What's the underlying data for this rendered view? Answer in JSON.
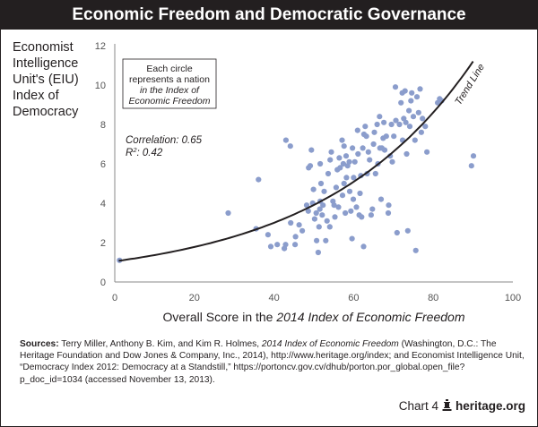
{
  "title": "Economic Freedom and Democratic Governance",
  "chart_data": {
    "type": "scatter",
    "ylabel": "Economist Intelligence Unit's (EIU) Index of Democracy",
    "xlabel_prefix": "Overall Score in the ",
    "xlabel_italic": "2014 Index of Economic Freedom",
    "xlim": [
      0,
      100
    ],
    "ylim": [
      0,
      12
    ],
    "x_ticks": [
      0,
      20,
      40,
      60,
      80,
      100
    ],
    "y_ticks": [
      0,
      2,
      4,
      6,
      8,
      10,
      12
    ],
    "grid": false,
    "point_color": "#8b9dcc",
    "trend_color": "#231f20",
    "trend_label": "Trend Line",
    "trend_line": {
      "type": "exponential",
      "a": 1.05,
      "b": 0.0263
    },
    "note_lines": [
      "Each circle",
      "represents a nation",
      "in the Index of",
      "Economic Freedom"
    ],
    "correlation_label": "Correlation: 0.65",
    "r2_label": "R2: 0.42",
    "points": [
      [
        1.2,
        1.1
      ],
      [
        28.5,
        3.5
      ],
      [
        36.1,
        5.2
      ],
      [
        35.5,
        2.7
      ],
      [
        38.5,
        2.4
      ],
      [
        39.2,
        1.8
      ],
      [
        40.8,
        1.9
      ],
      [
        43.0,
        7.2
      ],
      [
        44.1,
        6.9
      ],
      [
        42.6,
        1.7
      ],
      [
        42.9,
        1.9
      ],
      [
        45.3,
        1.9
      ],
      [
        45.4,
        2.3
      ],
      [
        46.3,
        2.9
      ],
      [
        47.1,
        2.6
      ],
      [
        44.2,
        3.0
      ],
      [
        48.2,
        3.9
      ],
      [
        48.6,
        3.6
      ],
      [
        48.7,
        5.8
      ],
      [
        49.1,
        5.9
      ],
      [
        49.4,
        6.7
      ],
      [
        49.7,
        4.0
      ],
      [
        49.9,
        4.7
      ],
      [
        50.2,
        3.2
      ],
      [
        50.6,
        3.5
      ],
      [
        50.7,
        2.1
      ],
      [
        51.1,
        1.5
      ],
      [
        51.3,
        2.8
      ],
      [
        51.5,
        3.7
      ],
      [
        51.6,
        4.1
      ],
      [
        51.6,
        6.0
      ],
      [
        51.8,
        5.0
      ],
      [
        52.1,
        3.4
      ],
      [
        52.3,
        3.9
      ],
      [
        52.6,
        4.6
      ],
      [
        53.0,
        2.1
      ],
      [
        53.3,
        3.1
      ],
      [
        53.6,
        5.5
      ],
      [
        54.0,
        2.8
      ],
      [
        54.1,
        6.2
      ],
      [
        54.4,
        6.6
      ],
      [
        54.8,
        4.1
      ],
      [
        55.1,
        3.9
      ],
      [
        55.3,
        3.3
      ],
      [
        55.6,
        4.8
      ],
      [
        55.9,
        5.7
      ],
      [
        56.2,
        3.8
      ],
      [
        56.4,
        6.3
      ],
      [
        56.6,
        5.8
      ],
      [
        57.1,
        7.2
      ],
      [
        57.2,
        4.4
      ],
      [
        57.4,
        6.0
      ],
      [
        57.6,
        5.0
      ],
      [
        57.6,
        6.9
      ],
      [
        57.9,
        3.5
      ],
      [
        58.1,
        6.4
      ],
      [
        58.2,
        5.3
      ],
      [
        58.5,
        5.9
      ],
      [
        58.9,
        6.1
      ],
      [
        59.0,
        4.6
      ],
      [
        59.3,
        3.6
      ],
      [
        59.6,
        2.2
      ],
      [
        59.7,
        6.8
      ],
      [
        59.9,
        4.2
      ],
      [
        60.0,
        5.3
      ],
      [
        60.3,
        6.1
      ],
      [
        60.7,
        3.8
      ],
      [
        61.0,
        7.7
      ],
      [
        61.1,
        6.5
      ],
      [
        61.4,
        3.4
      ],
      [
        61.6,
        4.5
      ],
      [
        61.8,
        5.4
      ],
      [
        62.0,
        3.3
      ],
      [
        62.3,
        6.8
      ],
      [
        62.5,
        1.8
      ],
      [
        62.6,
        7.5
      ],
      [
        62.9,
        7.9
      ],
      [
        63.2,
        7.4
      ],
      [
        63.4,
        5.5
      ],
      [
        63.7,
        6.6
      ],
      [
        64.0,
        6.2
      ],
      [
        64.4,
        3.4
      ],
      [
        64.7,
        3.7
      ],
      [
        65.0,
        7.0
      ],
      [
        65.2,
        7.6
      ],
      [
        65.5,
        5.5
      ],
      [
        65.9,
        8.0
      ],
      [
        66.1,
        6.0
      ],
      [
        66.5,
        8.4
      ],
      [
        66.6,
        6.8
      ],
      [
        66.9,
        4.2
      ],
      [
        67.1,
        6.8
      ],
      [
        67.4,
        7.3
      ],
      [
        67.6,
        8.1
      ],
      [
        67.8,
        6.7
      ],
      [
        68.2,
        7.4
      ],
      [
        68.7,
        3.5
      ],
      [
        68.8,
        3.9
      ],
      [
        69.2,
        6.4
      ],
      [
        69.5,
        8.0
      ],
      [
        69.7,
        6.1
      ],
      [
        70.1,
        7.4
      ],
      [
        70.5,
        9.9
      ],
      [
        70.6,
        8.2
      ],
      [
        70.9,
        2.5
      ],
      [
        71.5,
        8.0
      ],
      [
        71.9,
        9.1
      ],
      [
        72.2,
        9.6
      ],
      [
        72.3,
        7.2
      ],
      [
        72.6,
        8.3
      ],
      [
        72.9,
        9.7
      ],
      [
        73.1,
        8.1
      ],
      [
        73.3,
        6.5
      ],
      [
        73.6,
        2.6
      ],
      [
        73.9,
        8.7
      ],
      [
        74.1,
        7.9
      ],
      [
        74.4,
        9.2
      ],
      [
        74.6,
        9.6
      ],
      [
        75.0,
        8.4
      ],
      [
        75.4,
        7.2
      ],
      [
        75.6,
        1.6
      ],
      [
        75.9,
        9.4
      ],
      [
        76.3,
        8.6
      ],
      [
        76.7,
        9.8
      ],
      [
        77.0,
        7.6
      ],
      [
        77.3,
        8.3
      ],
      [
        78.0,
        7.9
      ],
      [
        78.4,
        6.6
      ],
      [
        81.1,
        9.1
      ],
      [
        81.6,
        9.3
      ],
      [
        82.1,
        9.2
      ],
      [
        89.6,
        5.9
      ],
      [
        90.1,
        6.4
      ]
    ]
  },
  "sources": {
    "label": "Sources:",
    "authors": " Terry Miller, Anthony B. Kim, and Kim R. Holmes, ",
    "book_title": "2014 Index of Economic Freedom",
    "rest": " (Washington, D.C.: The Heritage Foundation and Dow Jones & Company, Inc., 2014), http://www.heritage.org/index; and Economist Intelligence Unit, “Democracy Index 2012: Democracy at a Standstill,” https://portoncv.gov.cv/dhub/porton.por_global.open_file?p_doc_id=1034 (accessed November 13, 2013)."
  },
  "footer": {
    "chart_label": "Chart 4",
    "site": "heritage.org"
  }
}
